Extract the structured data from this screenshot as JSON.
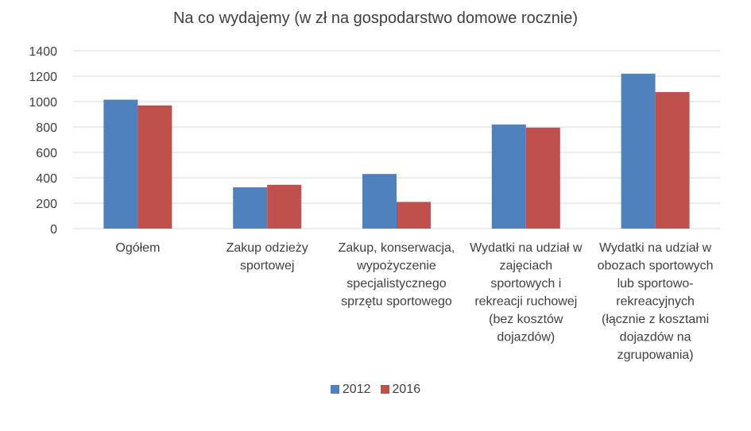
{
  "chart_data": {
    "type": "bar",
    "title": "Na co wydajemy (w zł na gospodarstwo domowe rocznie)",
    "categories": [
      [
        "Ogółem"
      ],
      [
        "Zakup odzieży",
        "sportowej"
      ],
      [
        "Zakup, konserwacja,",
        "wypożyczenie",
        "specjalistycznego",
        "sprzętu sportowego"
      ],
      [
        "Wydatki na udział w",
        "zajęciach",
        "sportowych i",
        "rekreacji ruchowej",
        "(bez kosztów",
        "dojazdów)"
      ],
      [
        "Wydatki na udział w",
        "obozach sportowych",
        "lub sportowo-",
        "rekreacyjnych",
        "(łącznie z kosztami",
        "dojazdów na",
        "zgrupowania)"
      ]
    ],
    "series": [
      {
        "name": "2012",
        "color": "#4F81BD",
        "values": [
          1015,
          325,
          430,
          820,
          1220
        ]
      },
      {
        "name": "2016",
        "color": "#C0504D",
        "values": [
          970,
          345,
          210,
          795,
          1075
        ]
      }
    ],
    "ylim": [
      0,
      1400
    ],
    "yticks": [
      0,
      200,
      400,
      600,
      800,
      1000,
      1200,
      1400
    ],
    "grid": true,
    "legend": "bottom"
  }
}
